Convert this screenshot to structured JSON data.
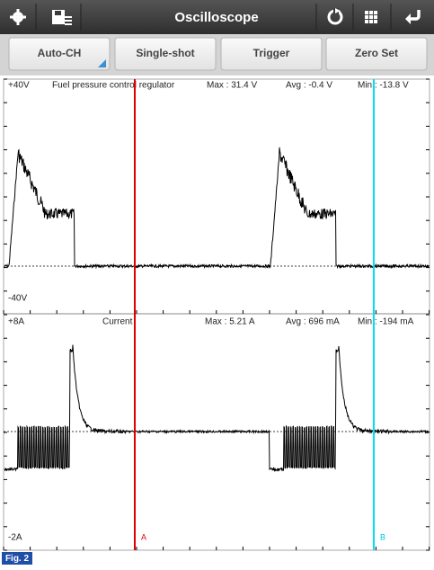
{
  "header": {
    "title": "Oscilloscope"
  },
  "buttons": [
    "Auto-CH",
    "Single-shot",
    "Trigger",
    "Zero Set"
  ],
  "channels": [
    {
      "top_label": "+40V",
      "name": "Fuel pressure control regulator",
      "max": "Max : 31.4 V",
      "avg": "Avg : -0.4 V",
      "min": "Min : -13.8 V",
      "bottom_label": "-40V"
    },
    {
      "top_label": "+8A",
      "name": "Current",
      "max": "Max : 5.21 A",
      "avg": "Avg : 696 mA",
      "min": "Min : -194 mA",
      "bottom_label": "-2A"
    }
  ],
  "cursors": [
    "A",
    "B"
  ],
  "figure_label": "Fig. 2"
}
